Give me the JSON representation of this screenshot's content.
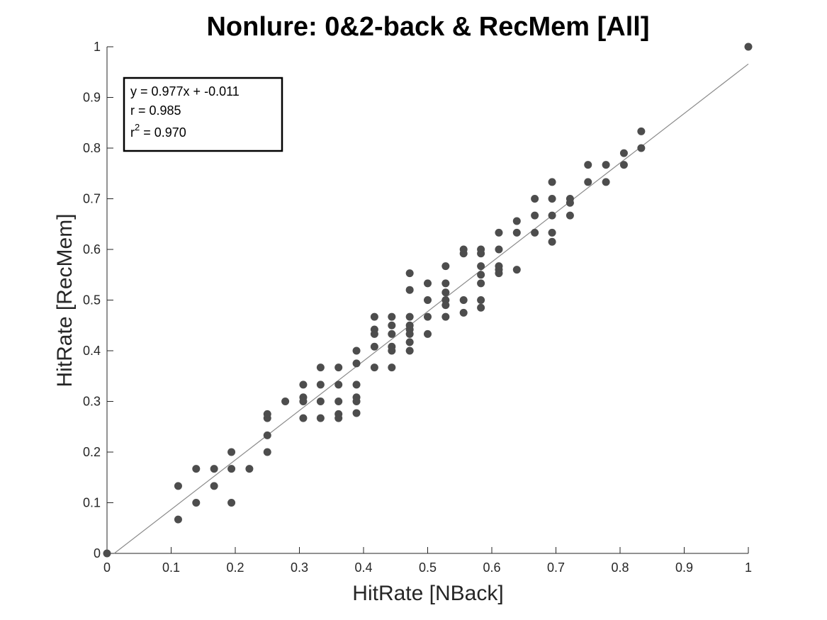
{
  "chart_data": {
    "type": "scatter",
    "title": "Nonlure: 0&2-back & RecMem [All]",
    "xlabel": "HitRate [NBack]",
    "ylabel": "HitRate [RecMem]",
    "xlim": [
      0,
      1
    ],
    "ylim": [
      0,
      1
    ],
    "x_ticks": [
      "0",
      "0.1",
      "0.2",
      "0.3",
      "0.4",
      "0.5",
      "0.6",
      "0.7",
      "0.8",
      "0.9",
      "1"
    ],
    "y_ticks": [
      "0",
      "0.1",
      "0.2",
      "0.3",
      "0.4",
      "0.5",
      "0.6",
      "0.7",
      "0.8",
      "0.9",
      "1"
    ],
    "grid": false,
    "fit": {
      "slope": 0.977,
      "intercept": -0.011
    },
    "stats_box": {
      "equation": "y = 0.977x + -0.011",
      "r": "r = 0.985",
      "r2_prefix": "r",
      "r2_sup": "2",
      "r2_value": " = 0.970"
    },
    "point_color": "#4d4d4d",
    "fit_color": "#8a8a8a",
    "points": [
      [
        0,
        0
      ],
      [
        1,
        1
      ],
      [
        0.111,
        0.133
      ],
      [
        0.111,
        0.067
      ],
      [
        0.139,
        0.167
      ],
      [
        0.139,
        0.1
      ],
      [
        0.167,
        0.167
      ],
      [
        0.167,
        0.133
      ],
      [
        0.194,
        0.2
      ],
      [
        0.194,
        0.167
      ],
      [
        0.194,
        0.1
      ],
      [
        0.222,
        0.167
      ],
      [
        0.25,
        0.267
      ],
      [
        0.25,
        0.275
      ],
      [
        0.25,
        0.233
      ],
      [
        0.25,
        0.2
      ],
      [
        0.278,
        0.3
      ],
      [
        0.306,
        0.333
      ],
      [
        0.306,
        0.308
      ],
      [
        0.306,
        0.3
      ],
      [
        0.306,
        0.267
      ],
      [
        0.333,
        0.367
      ],
      [
        0.333,
        0.333
      ],
      [
        0.333,
        0.3
      ],
      [
        0.333,
        0.267
      ],
      [
        0.361,
        0.367
      ],
      [
        0.361,
        0.333
      ],
      [
        0.361,
        0.3
      ],
      [
        0.361,
        0.275
      ],
      [
        0.361,
        0.267
      ],
      [
        0.389,
        0.4
      ],
      [
        0.389,
        0.375
      ],
      [
        0.389,
        0.333
      ],
      [
        0.389,
        0.308
      ],
      [
        0.389,
        0.3
      ],
      [
        0.389,
        0.277
      ],
      [
        0.417,
        0.467
      ],
      [
        0.417,
        0.442
      ],
      [
        0.417,
        0.433
      ],
      [
        0.417,
        0.408
      ],
      [
        0.417,
        0.367
      ],
      [
        0.444,
        0.467
      ],
      [
        0.444,
        0.45
      ],
      [
        0.444,
        0.433
      ],
      [
        0.444,
        0.408
      ],
      [
        0.444,
        0.4
      ],
      [
        0.444,
        0.367
      ],
      [
        0.472,
        0.553
      ],
      [
        0.472,
        0.52
      ],
      [
        0.472,
        0.467
      ],
      [
        0.472,
        0.45
      ],
      [
        0.472,
        0.442
      ],
      [
        0.472,
        0.433
      ],
      [
        0.472,
        0.417
      ],
      [
        0.472,
        0.4
      ],
      [
        0.5,
        0.533
      ],
      [
        0.5,
        0.5
      ],
      [
        0.5,
        0.467
      ],
      [
        0.5,
        0.433
      ],
      [
        0.528,
        0.567
      ],
      [
        0.528,
        0.533
      ],
      [
        0.528,
        0.515
      ],
      [
        0.528,
        0.5
      ],
      [
        0.528,
        0.49
      ],
      [
        0.528,
        0.467
      ],
      [
        0.556,
        0.6
      ],
      [
        0.556,
        0.592
      ],
      [
        0.556,
        0.5
      ],
      [
        0.556,
        0.475
      ],
      [
        0.583,
        0.6
      ],
      [
        0.583,
        0.592
      ],
      [
        0.583,
        0.567
      ],
      [
        0.583,
        0.55
      ],
      [
        0.583,
        0.533
      ],
      [
        0.583,
        0.5
      ],
      [
        0.583,
        0.485
      ],
      [
        0.611,
        0.633
      ],
      [
        0.611,
        0.6
      ],
      [
        0.611,
        0.567
      ],
      [
        0.611,
        0.56
      ],
      [
        0.611,
        0.553
      ],
      [
        0.639,
        0.656
      ],
      [
        0.639,
        0.633
      ],
      [
        0.639,
        0.56
      ],
      [
        0.667,
        0.7
      ],
      [
        0.667,
        0.667
      ],
      [
        0.667,
        0.633
      ],
      [
        0.694,
        0.733
      ],
      [
        0.694,
        0.7
      ],
      [
        0.694,
        0.667
      ],
      [
        0.694,
        0.633
      ],
      [
        0.694,
        0.615
      ],
      [
        0.722,
        0.7
      ],
      [
        0.722,
        0.692
      ],
      [
        0.722,
        0.667
      ],
      [
        0.75,
        0.767
      ],
      [
        0.75,
        0.733
      ],
      [
        0.778,
        0.767
      ],
      [
        0.778,
        0.733
      ],
      [
        0.806,
        0.79
      ],
      [
        0.806,
        0.767
      ],
      [
        0.833,
        0.833
      ],
      [
        0.833,
        0.8
      ]
    ]
  }
}
